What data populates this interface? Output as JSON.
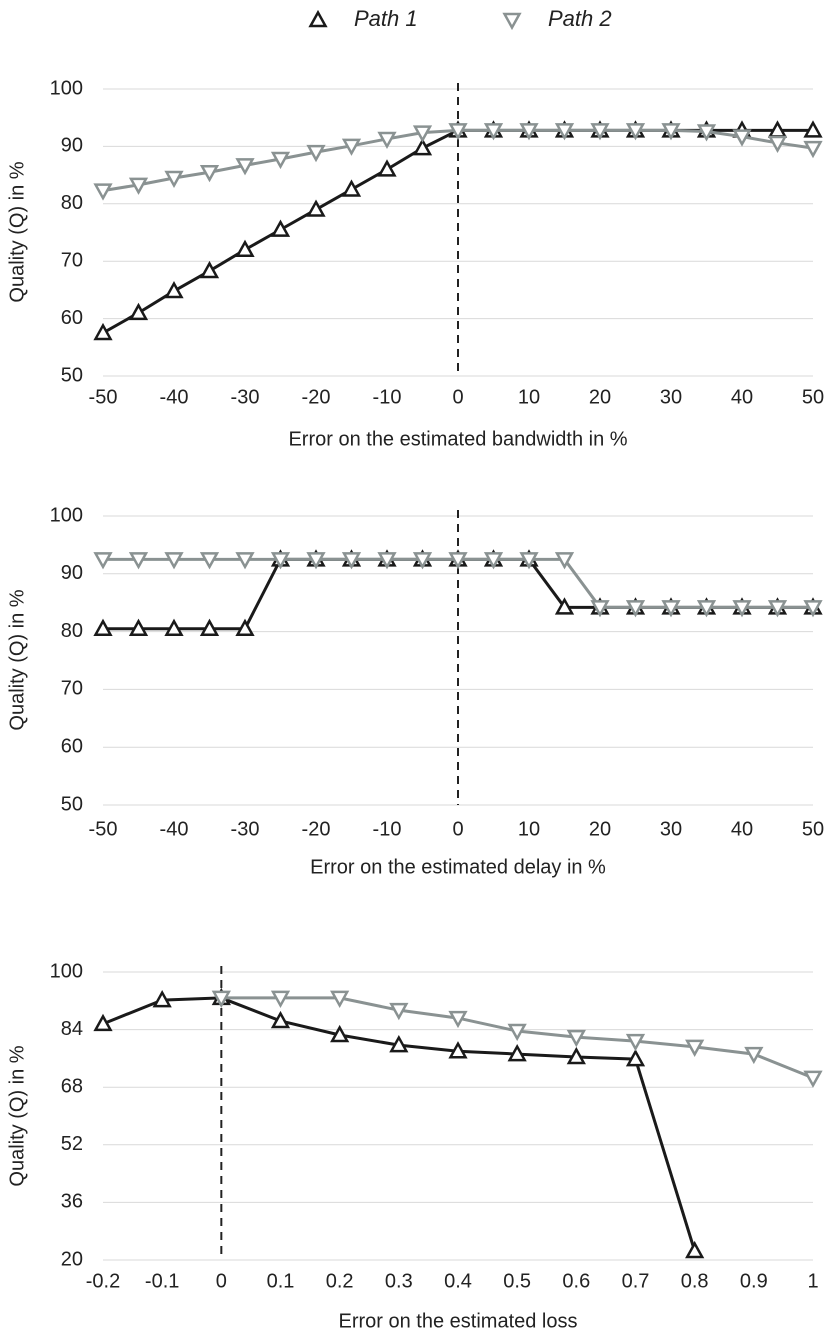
{
  "chart_data": [
    {
      "type": "line",
      "x_label": "Error on the estimated bandwidth in %",
      "y_label": "Quality (Q) in %",
      "x": [
        -50,
        -45,
        -40,
        -35,
        -30,
        -25,
        -20,
        -15,
        -10,
        -5,
        0,
        5,
        10,
        15,
        20,
        25,
        30,
        35,
        40,
        45,
        50
      ],
      "series": [
        {
          "name": "Path 1",
          "color": "#1a1a1a",
          "marker": "up",
          "values": [
            57.5,
            61,
            64.8,
            68.3,
            72,
            75.5,
            79,
            82.5,
            86,
            89.7,
            92.8,
            92.8,
            92.8,
            92.8,
            92.8,
            92.8,
            92.8,
            92.8,
            92.8,
            92.8,
            92.8
          ]
        },
        {
          "name": "Path 2",
          "color": "#8a9292",
          "marker": "down",
          "values": [
            82.3,
            83.3,
            84.5,
            85.5,
            86.7,
            87.8,
            89,
            90.1,
            91.3,
            92.4,
            92.8,
            92.8,
            92.8,
            92.8,
            92.8,
            92.8,
            92.8,
            92.6,
            91.7,
            90.6,
            89.7
          ]
        }
      ],
      "xlim": [
        -50,
        50
      ],
      "xticks": [
        -50,
        -40,
        -30,
        -20,
        -10,
        0,
        10,
        20,
        30,
        40,
        50
      ],
      "ylim": [
        50,
        100
      ],
      "yticks": [
        50,
        60,
        70,
        80,
        90,
        100
      ],
      "grid": true,
      "vline_x": 0
    },
    {
      "type": "line",
      "x_label": "Error on the estimated delay in %",
      "y_label": "Quality (Q) in %",
      "x": [
        -50,
        -45,
        -40,
        -35,
        -30,
        -25,
        -20,
        -15,
        -10,
        -5,
        0,
        5,
        10,
        15,
        20,
        25,
        30,
        35,
        40,
        45,
        50
      ],
      "series": [
        {
          "name": "Path 1",
          "color": "#1a1a1a",
          "marker": "up",
          "values": [
            80.5,
            80.5,
            80.5,
            80.5,
            80.5,
            92.5,
            92.5,
            92.5,
            92.5,
            92.5,
            92.5,
            92.5,
            92.5,
            84.2,
            84.2,
            84.2,
            84.2,
            84.2,
            84.2,
            84.2,
            84.2
          ]
        },
        {
          "name": "Path 2",
          "color": "#8a9292",
          "marker": "down",
          "values": [
            92.5,
            92.5,
            92.5,
            92.5,
            92.5,
            92.5,
            92.5,
            92.5,
            92.5,
            92.5,
            92.5,
            92.5,
            92.5,
            92.5,
            84.2,
            84.2,
            84.2,
            84.2,
            84.2,
            84.2,
            84.2
          ]
        }
      ],
      "xlim": [
        -50,
        50
      ],
      "xticks": [
        -50,
        -40,
        -30,
        -20,
        -10,
        0,
        10,
        20,
        30,
        40,
        50
      ],
      "ylim": [
        50,
        100
      ],
      "yticks": [
        50,
        60,
        70,
        80,
        90,
        100
      ],
      "grid": true,
      "vline_x": 0
    },
    {
      "type": "line",
      "x_label": "Error on the estimated loss",
      "y_label": "Quality (Q) in %",
      "x": [
        -0.2,
        -0.1,
        0,
        0.1,
        0.2,
        0.3,
        0.4,
        0.5,
        0.6,
        0.7,
        0.8,
        0.9,
        1
      ],
      "series": [
        {
          "name": "Path 1",
          "color": "#1a1a1a",
          "marker": "up",
          "values": [
            85.6,
            92.2,
            92.8,
            86.4,
            82.5,
            79.7,
            78,
            77.2,
            76.4,
            75.8,
            22.5,
            null,
            null
          ]
        },
        {
          "name": "Path 2",
          "color": "#8a9292",
          "marker": "down",
          "values": [
            null,
            null,
            92.8,
            92.8,
            92.8,
            89.4,
            87.2,
            83.6,
            81.9,
            80.8,
            79.2,
            77.2,
            70.6
          ]
        }
      ],
      "xlim": [
        -0.2,
        1
      ],
      "xticks": [
        -0.2,
        -0.1,
        0,
        0.1,
        0.2,
        0.3,
        0.4,
        0.5,
        0.6,
        0.7,
        0.8,
        0.9,
        1
      ],
      "ylim": [
        20,
        100
      ],
      "yticks": [
        20,
        36,
        52,
        68,
        84,
        100
      ],
      "grid": true,
      "vline_x": 0
    }
  ]
}
